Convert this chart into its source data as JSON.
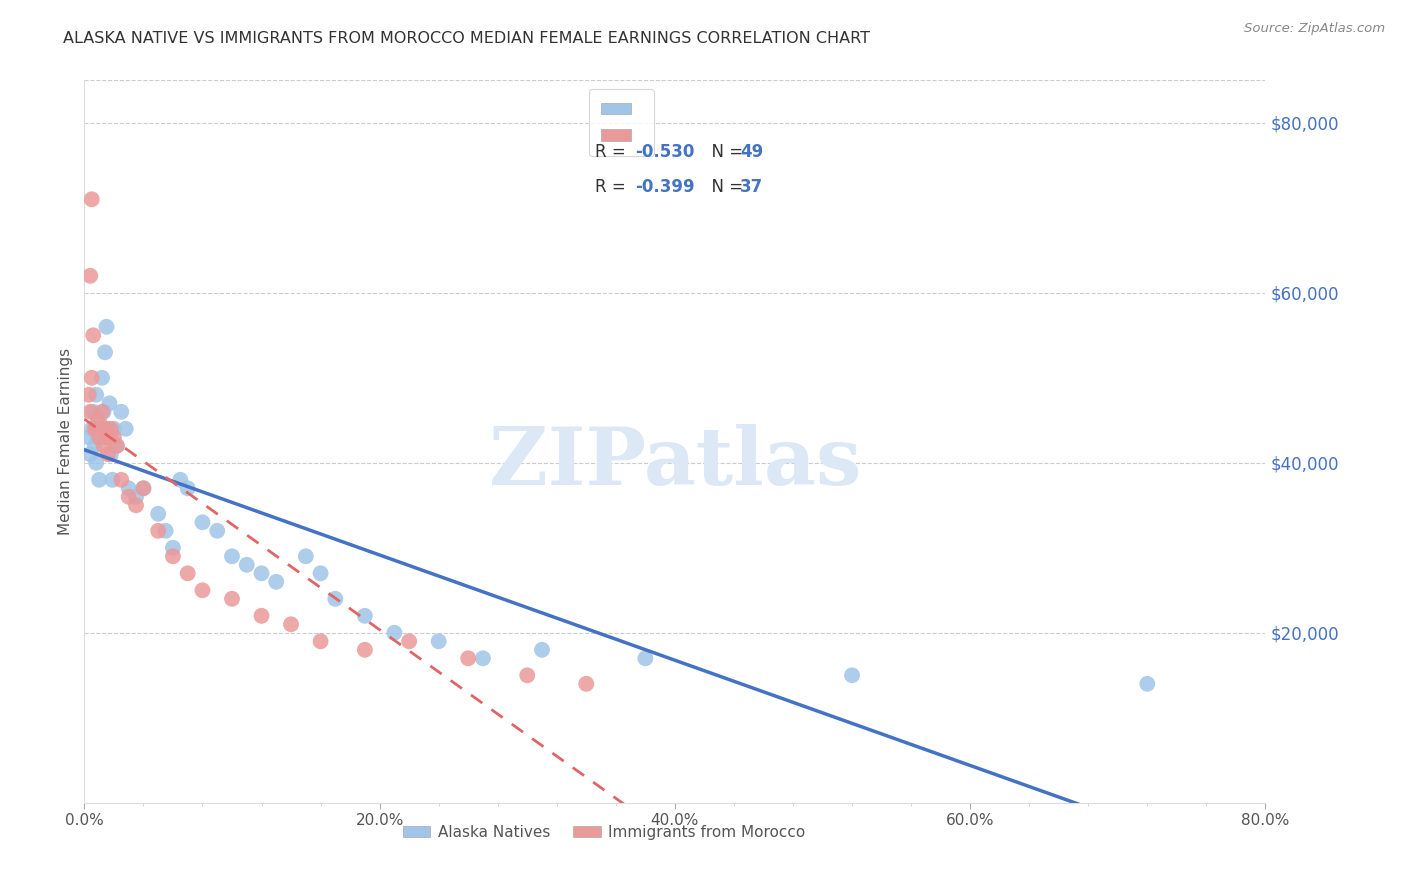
{
  "title": "ALASKA NATIVE VS IMMIGRANTS FROM MOROCCO MEDIAN FEMALE EARNINGS CORRELATION CHART",
  "source": "Source: ZipAtlas.com",
  "ylabel": "Median Female Earnings",
  "right_ytick_labels": [
    "",
    "$20,000",
    "$40,000",
    "$60,000",
    "$80,000"
  ],
  "right_ytick_vals": [
    0,
    20000,
    40000,
    60000,
    80000
  ],
  "xlim": [
    0.0,
    0.8
  ],
  "ylim": [
    0,
    85000
  ],
  "xtick_labels": [
    "0.0%",
    "",
    "",
    "",
    "",
    "20.0%",
    "",
    "",
    "",
    "",
    "40.0%",
    "",
    "",
    "",
    "",
    "60.0%",
    "",
    "",
    "",
    "",
    "80.0%"
  ],
  "xtick_positions": [
    0.0,
    0.04,
    0.08,
    0.12,
    0.16,
    0.2,
    0.24,
    0.28,
    0.32,
    0.36,
    0.4,
    0.44,
    0.48,
    0.52,
    0.56,
    0.6,
    0.64,
    0.68,
    0.72,
    0.76,
    0.8
  ],
  "alaska_color": "#9fc5e8",
  "morocco_color": "#ea9999",
  "alaska_line_color": "#4472c4",
  "morocco_line_color": "#e06666",
  "watermark_text": "ZIPatlas",
  "legend_r1": "R = -0.530",
  "legend_n1": "N = 49",
  "legend_r2": "R = -0.399",
  "legend_n2": "N = 37",
  "alaska_x": [
    0.003,
    0.004,
    0.005,
    0.006,
    0.007,
    0.008,
    0.008,
    0.009,
    0.01,
    0.01,
    0.011,
    0.012,
    0.013,
    0.014,
    0.015,
    0.015,
    0.016,
    0.017,
    0.018,
    0.019,
    0.02,
    0.022,
    0.025,
    0.028,
    0.03,
    0.035,
    0.04,
    0.05,
    0.055,
    0.06,
    0.065,
    0.07,
    0.08,
    0.09,
    0.1,
    0.11,
    0.12,
    0.13,
    0.15,
    0.16,
    0.17,
    0.19,
    0.21,
    0.24,
    0.27,
    0.31,
    0.38,
    0.52,
    0.72
  ],
  "alaska_y": [
    43000,
    41000,
    44000,
    46000,
    42000,
    48000,
    40000,
    43000,
    45000,
    38000,
    44000,
    50000,
    46000,
    53000,
    56000,
    43000,
    44000,
    47000,
    41000,
    38000,
    44000,
    42000,
    46000,
    44000,
    37000,
    36000,
    37000,
    34000,
    32000,
    30000,
    38000,
    37000,
    33000,
    32000,
    29000,
    28000,
    27000,
    26000,
    29000,
    27000,
    24000,
    22000,
    20000,
    19000,
    17000,
    18000,
    17000,
    15000,
    14000
  ],
  "morocco_x": [
    0.003,
    0.004,
    0.005,
    0.006,
    0.007,
    0.008,
    0.009,
    0.01,
    0.011,
    0.012,
    0.013,
    0.014,
    0.015,
    0.016,
    0.017,
    0.018,
    0.02,
    0.022,
    0.025,
    0.03,
    0.035,
    0.04,
    0.05,
    0.06,
    0.07,
    0.08,
    0.1,
    0.12,
    0.14,
    0.16,
    0.19,
    0.22,
    0.26,
    0.3,
    0.34,
    0.004,
    0.005
  ],
  "morocco_y": [
    48000,
    46000,
    50000,
    55000,
    44000,
    44000,
    45000,
    43000,
    44000,
    46000,
    42000,
    44000,
    43000,
    41000,
    43000,
    44000,
    43000,
    42000,
    38000,
    36000,
    35000,
    37000,
    32000,
    29000,
    27000,
    25000,
    24000,
    22000,
    21000,
    19000,
    18000,
    19000,
    17000,
    15000,
    14000,
    62000,
    71000
  ]
}
